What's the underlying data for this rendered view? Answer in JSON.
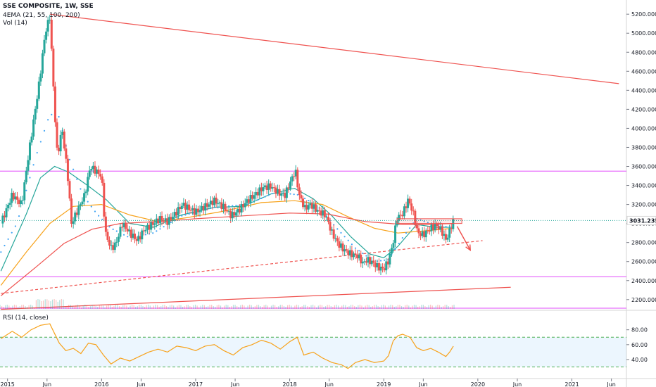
{
  "legend": {
    "title": "SSE COMPOSITE, 1W, SSE",
    "ema": "4EMA (21, 55, 100, 200)",
    "vol": "Vol (14)",
    "rsi": "RSI (14, close)"
  },
  "colors": {
    "up": "#26a69a",
    "down": "#ef5350",
    "ema21": "#26a69a",
    "ema55": "#f7a21b",
    "ema100": "#ef5350",
    "ema200": "#42a5f5",
    "rsi": "#f7a21b",
    "magenta": "#e040fb",
    "trend": "#ef5350",
    "current_price": "#26a69a"
  },
  "chart_data": [
    {
      "type": "candlestick",
      "title": "SSE COMPOSITE, 1W, SSE",
      "y_ticks": [
        2200,
        2400,
        2600,
        2800,
        3000,
        3200,
        3400,
        3600,
        3800,
        4000,
        4200,
        4400,
        4600,
        4800,
        5000,
        5200
      ],
      "y_tick_labels": [
        "2200.0000",
        "2400.0000",
        "2600.0000",
        "2800.0000",
        "3000.0000",
        "3200.0000",
        "3400.0000",
        "3600.0000",
        "3800.0000",
        "4000.0000",
        "4200.0000",
        "4400.0000",
        "4600.0000",
        "4800.0000",
        "5000.0000",
        "5200.0000"
      ],
      "ylim": [
        2095,
        5290
      ],
      "x_ticks": [
        "2015",
        "Jun",
        "2016",
        "Jun",
        "2017",
        "Jun",
        "2018",
        "Jun",
        "2019",
        "Jun",
        "2020",
        "Jun",
        "2021",
        "Jun"
      ],
      "x_tick_times": [
        2015.0,
        2015.42,
        2016.0,
        2016.42,
        2017.0,
        2017.42,
        2018.0,
        2018.42,
        2019.0,
        2019.42,
        2020.0,
        2020.42,
        2021.0,
        2021.42
      ],
      "current_price": 3031.2351,
      "current_price_label": "3031.2351",
      "price_path": [
        [
          2014.93,
          3000
        ],
        [
          2015.05,
          3300
        ],
        [
          2015.15,
          3200
        ],
        [
          2015.22,
          3700
        ],
        [
          2015.28,
          4100
        ],
        [
          2015.34,
          4500
        ],
        [
          2015.4,
          5000
        ],
        [
          2015.45,
          5178
        ],
        [
          2015.5,
          4200
        ],
        [
          2015.53,
          3700
        ],
        [
          2015.58,
          4000
        ],
        [
          2015.64,
          3500
        ],
        [
          2015.68,
          3000
        ],
        [
          2015.75,
          3150
        ],
        [
          2015.82,
          3300
        ],
        [
          2015.88,
          3600
        ],
        [
          2015.94,
          3550
        ],
        [
          2016.0,
          3500
        ],
        [
          2016.04,
          2900
        ],
        [
          2016.1,
          2740
        ],
        [
          2016.15,
          2780
        ],
        [
          2016.22,
          3000
        ],
        [
          2016.3,
          2900
        ],
        [
          2016.38,
          2820
        ],
        [
          2016.45,
          2930
        ],
        [
          2016.55,
          3000
        ],
        [
          2016.62,
          3050
        ],
        [
          2016.7,
          3020
        ],
        [
          2016.78,
          3100
        ],
        [
          2016.86,
          3200
        ],
        [
          2016.94,
          3150
        ],
        [
          2017.0,
          3120
        ],
        [
          2017.1,
          3180
        ],
        [
          2017.2,
          3240
        ],
        [
          2017.3,
          3170
        ],
        [
          2017.38,
          3080
        ],
        [
          2017.46,
          3140
        ],
        [
          2017.55,
          3240
        ],
        [
          2017.64,
          3310
        ],
        [
          2017.72,
          3380
        ],
        [
          2017.8,
          3390
        ],
        [
          2017.88,
          3320
        ],
        [
          2017.95,
          3300
        ],
        [
          2018.0,
          3420
        ],
        [
          2018.06,
          3560
        ],
        [
          2018.1,
          3300
        ],
        [
          2018.16,
          3160
        ],
        [
          2018.22,
          3200
        ],
        [
          2018.3,
          3130
        ],
        [
          2018.38,
          3090
        ],
        [
          2018.45,
          2900
        ],
        [
          2018.52,
          2780
        ],
        [
          2018.58,
          2720
        ],
        [
          2018.65,
          2680
        ],
        [
          2018.72,
          2660
        ],
        [
          2018.78,
          2580
        ],
        [
          2018.82,
          2620
        ],
        [
          2018.88,
          2590
        ],
        [
          2018.94,
          2540
        ],
        [
          2019.0,
          2520
        ],
        [
          2019.05,
          2610
        ],
        [
          2019.1,
          2800
        ],
        [
          2019.14,
          3060
        ],
        [
          2019.2,
          3100
        ],
        [
          2019.26,
          3250
        ],
        [
          2019.31,
          3120
        ],
        [
          2019.36,
          2900
        ],
        [
          2019.42,
          2880
        ],
        [
          2019.5,
          2950
        ],
        [
          2019.56,
          2980
        ],
        [
          2019.61,
          2930
        ],
        [
          2019.66,
          2830
        ],
        [
          2019.69,
          2890
        ],
        [
          2019.72,
          2980
        ],
        [
          2019.74,
          3031
        ]
      ],
      "ema_series": [
        {
          "name": "EMA 21",
          "color_key": "ema21",
          "points": [
            [
              2014.93,
              2500
            ],
            [
              2015.2,
              3100
            ],
            [
              2015.35,
              3480
            ],
            [
              2015.5,
              3600
            ],
            [
              2015.65,
              3540
            ],
            [
              2015.85,
              3400
            ],
            [
              2016.05,
              3250
            ],
            [
              2016.3,
              3000
            ],
            [
              2016.55,
              2960
            ],
            [
              2016.85,
              3090
            ],
            [
              2017.2,
              3170
            ],
            [
              2017.5,
              3180
            ],
            [
              2017.8,
              3310
            ],
            [
              2018.05,
              3370
            ],
            [
              2018.25,
              3260
            ],
            [
              2018.45,
              3080
            ],
            [
              2018.65,
              2860
            ],
            [
              2018.85,
              2680
            ],
            [
              2019.0,
              2640
            ],
            [
              2019.15,
              2760
            ],
            [
              2019.35,
              2990
            ],
            [
              2019.55,
              2960
            ],
            [
              2019.74,
              2960
            ]
          ]
        },
        {
          "name": "EMA 55",
          "color_key": "ema55",
          "points": [
            [
              2014.93,
              2350
            ],
            [
              2015.2,
              2700
            ],
            [
              2015.45,
              3000
            ],
            [
              2015.7,
              3180
            ],
            [
              2016.0,
              3200
            ],
            [
              2016.3,
              3090
            ],
            [
              2016.6,
              3020
            ],
            [
              2016.9,
              3060
            ],
            [
              2017.3,
              3130
            ],
            [
              2017.7,
              3220
            ],
            [
              2018.05,
              3240
            ],
            [
              2018.35,
              3200
            ],
            [
              2018.6,
              3080
            ],
            [
              2018.9,
              2950
            ],
            [
              2019.15,
              2900
            ],
            [
              2019.4,
              2920
            ],
            [
              2019.74,
              2950
            ]
          ]
        },
        {
          "name": "EMA 100",
          "color_key": "ema100",
          "points": [
            [
              2014.93,
              2240
            ],
            [
              2015.3,
              2540
            ],
            [
              2015.6,
              2790
            ],
            [
              2015.9,
              2940
            ],
            [
              2016.2,
              3000
            ],
            [
              2016.6,
              3020
            ],
            [
              2017.0,
              3050
            ],
            [
              2017.5,
              3080
            ],
            [
              2018.0,
              3110
            ],
            [
              2018.4,
              3100
            ],
            [
              2018.8,
              3020
            ],
            [
              2019.2,
              2990
            ],
            [
              2019.5,
              2990
            ],
            [
              2019.74,
              3000
            ]
          ]
        },
        {
          "name": "EMA 200",
          "color_key": "ema200",
          "style": "dots",
          "points": [
            [
              2014.93,
              2700
            ],
            [
              2015.1,
              3000
            ],
            [
              2015.3,
              3700
            ],
            [
              2015.45,
              4150
            ],
            [
              2015.55,
              4120
            ],
            [
              2015.65,
              3700
            ],
            [
              2015.8,
              3300
            ],
            [
              2015.95,
              3100
            ],
            [
              2016.1,
              2950
            ],
            [
              2016.3,
              2850
            ],
            [
              2016.55,
              2900
            ],
            [
              2016.85,
              3080
            ],
            [
              2017.2,
              3170
            ],
            [
              2017.55,
              3200
            ],
            [
              2017.85,
              3330
            ],
            [
              2018.1,
              3300
            ],
            [
              2018.3,
              3180
            ],
            [
              2018.5,
              2950
            ],
            [
              2018.7,
              2740
            ],
            [
              2018.9,
              2600
            ],
            [
              2019.05,
              2620
            ],
            [
              2019.2,
              2850
            ],
            [
              2019.35,
              3050
            ],
            [
              2019.5,
              3000
            ],
            [
              2019.74,
              2950
            ]
          ]
        }
      ],
      "horizontal_levels": [
        {
          "value": 3550,
          "color_key": "magenta"
        },
        {
          "value": 2440,
          "color_key": "magenta"
        },
        {
          "value": 2110,
          "color_key": "magenta"
        }
      ],
      "resistance_box": {
        "t1": 2019.14,
        "t2": 2019.83,
        "y1": 3000,
        "y2": 3050
      },
      "trendlines": [
        {
          "style": "solid",
          "points": [
            [
              2015.45,
              5200
            ],
            [
              2021.5,
              4470
            ]
          ]
        },
        {
          "style": "dashed",
          "points": [
            [
              2014.93,
              2265
            ],
            [
              2020.05,
              2820
            ]
          ]
        },
        {
          "style": "solid",
          "points": [
            [
              2014.93,
              2098
            ],
            [
              2020.35,
              2330
            ]
          ]
        }
      ],
      "projection_arrow": {
        "from": [
          2019.78,
          2970
        ],
        "to": [
          2019.92,
          2720
        ]
      }
    },
    {
      "type": "line",
      "title": "RSI (14, close)",
      "y_ticks": [
        40,
        60,
        80
      ],
      "y_tick_labels": [
        "40.00",
        "60.00",
        "80.00"
      ],
      "ylim": [
        22,
        92
      ],
      "band": [
        30,
        70
      ],
      "series": [
        {
          "name": "RSI",
          "color_key": "rsi",
          "points": [
            [
              2014.93,
              68
            ],
            [
              2015.05,
              78
            ],
            [
              2015.15,
              70
            ],
            [
              2015.25,
              80
            ],
            [
              2015.35,
              86
            ],
            [
              2015.45,
              88
            ],
            [
              2015.55,
              62
            ],
            [
              2015.62,
              52
            ],
            [
              2015.7,
              55
            ],
            [
              2015.78,
              48
            ],
            [
              2015.86,
              62
            ],
            [
              2015.94,
              60
            ],
            [
              2016.02,
              46
            ],
            [
              2016.1,
              34
            ],
            [
              2016.2,
              42
            ],
            [
              2016.3,
              38
            ],
            [
              2016.4,
              44
            ],
            [
              2016.5,
              50
            ],
            [
              2016.6,
              54
            ],
            [
              2016.7,
              50
            ],
            [
              2016.8,
              58
            ],
            [
              2016.9,
              56
            ],
            [
              2017.0,
              52
            ],
            [
              2017.1,
              58
            ],
            [
              2017.2,
              60
            ],
            [
              2017.3,
              52
            ],
            [
              2017.4,
              46
            ],
            [
              2017.5,
              56
            ],
            [
              2017.6,
              60
            ],
            [
              2017.7,
              66
            ],
            [
              2017.8,
              62
            ],
            [
              2017.9,
              54
            ],
            [
              2018.0,
              64
            ],
            [
              2018.08,
              70
            ],
            [
              2018.15,
              46
            ],
            [
              2018.25,
              50
            ],
            [
              2018.35,
              42
            ],
            [
              2018.45,
              36
            ],
            [
              2018.55,
              33
            ],
            [
              2018.62,
              28
            ],
            [
              2018.7,
              36
            ],
            [
              2018.8,
              40
            ],
            [
              2018.9,
              36
            ],
            [
              2019.0,
              38
            ],
            [
              2019.05,
              45
            ],
            [
              2019.1,
              65
            ],
            [
              2019.15,
              72
            ],
            [
              2019.2,
              74
            ],
            [
              2019.28,
              70
            ],
            [
              2019.35,
              56
            ],
            [
              2019.42,
              52
            ],
            [
              2019.5,
              55
            ],
            [
              2019.58,
              50
            ],
            [
              2019.66,
              44
            ],
            [
              2019.7,
              50
            ],
            [
              2019.74,
              58
            ]
          ]
        }
      ]
    }
  ]
}
